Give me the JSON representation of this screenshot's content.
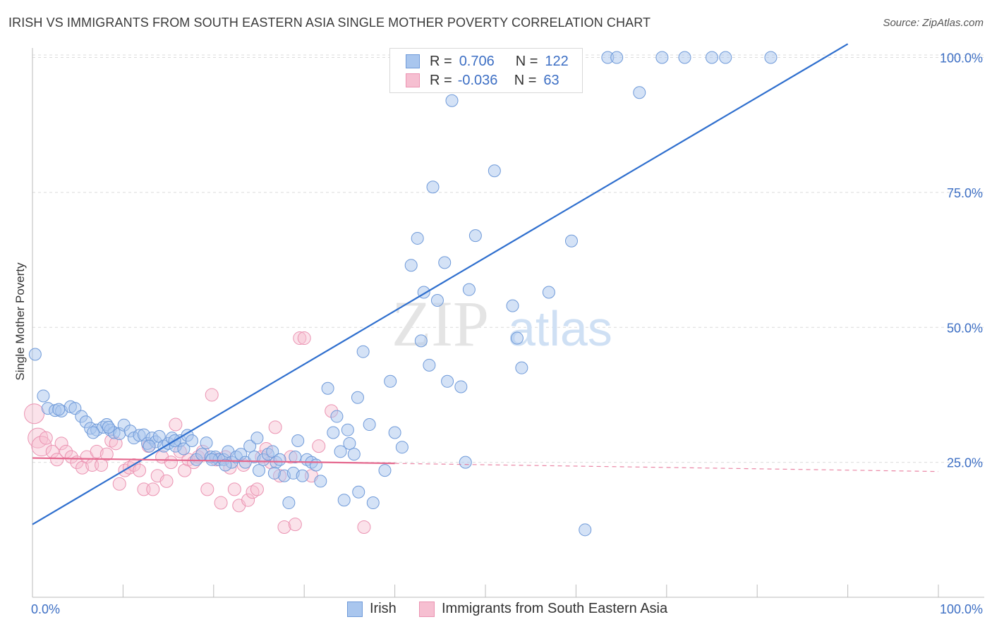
{
  "title": "IRISH VS IMMIGRANTS FROM SOUTH EASTERN ASIA SINGLE MOTHER POVERTY CORRELATION CHART",
  "source": "Source: ZipAtlas.com",
  "watermark": {
    "zip": "ZIP",
    "atlas": "atlas"
  },
  "legend": {
    "r_label": "R =",
    "n_label": "N =",
    "irish": {
      "r": "0.706",
      "n": "122"
    },
    "sea": {
      "r": "-0.036",
      "n": "63"
    }
  },
  "colors": {
    "irish_fill": "#a9c6ee",
    "irish_stroke": "#6f9ad9",
    "irish_line": "#2f6fce",
    "sea_fill": "#f6bfd1",
    "sea_stroke": "#eb93b2",
    "sea_line": "#e5698f",
    "tick_label": "#3d6fc4",
    "grid": "#dcdcdc"
  },
  "chart_data": {
    "type": "scatter",
    "title": "IRISH VS IMMIGRANTS FROM SOUTH EASTERN ASIA SINGLE MOTHER POVERTY CORRELATION CHART",
    "xlabel": "",
    "ylabel": "Single Mother Poverty",
    "xlim": [
      0,
      100
    ],
    "ylim": [
      0,
      105
    ],
    "x_tick_labels": [
      "0.0%",
      "100.0%"
    ],
    "y_ticks": [
      25,
      50,
      75,
      100
    ],
    "y_tick_labels": [
      "25.0%",
      "50.0%",
      "75.0%",
      "100.0%"
    ],
    "grid": "horizontal dashed",
    "legend_placement": "top-center and bottom",
    "series": [
      {
        "name": "Irish",
        "r": 0.706,
        "n": 122,
        "trend": {
          "x": [
            0,
            90
          ],
          "y": [
            13.5,
            102.5
          ]
        },
        "points": [
          [
            0.3,
            45.0
          ],
          [
            1.2,
            37.3
          ],
          [
            1.7,
            35.0
          ],
          [
            2.5,
            34.6
          ],
          [
            3.2,
            34.5
          ],
          [
            4.2,
            35.3
          ],
          [
            4.7,
            35.0
          ],
          [
            5.4,
            33.5
          ],
          [
            5.9,
            32.5
          ],
          [
            6.4,
            31.3
          ],
          [
            7.1,
            31.0
          ],
          [
            7.8,
            31.5
          ],
          [
            8.2,
            32.0
          ],
          [
            8.6,
            31.0
          ],
          [
            9.0,
            30.5
          ],
          [
            9.6,
            30.3
          ],
          [
            10.1,
            31.9
          ],
          [
            10.8,
            30.8
          ],
          [
            11.2,
            29.5
          ],
          [
            11.8,
            30.0
          ],
          [
            12.3,
            30.1
          ],
          [
            12.7,
            28.5
          ],
          [
            13.2,
            29.5
          ],
          [
            13.6,
            28.8
          ],
          [
            14.0,
            29.8
          ],
          [
            14.5,
            28.0
          ],
          [
            15.0,
            28.5
          ],
          [
            15.4,
            29.5
          ],
          [
            15.8,
            28.0
          ],
          [
            16.3,
            29.0
          ],
          [
            16.7,
            27.5
          ],
          [
            17.1,
            30.0
          ],
          [
            17.6,
            29.0
          ],
          [
            18.1,
            25.5
          ],
          [
            18.7,
            26.5
          ],
          [
            19.2,
            28.6
          ],
          [
            19.7,
            26.0
          ],
          [
            20.2,
            26.0
          ],
          [
            20.6,
            25.5
          ],
          [
            21.1,
            25.5
          ],
          [
            21.6,
            27.0
          ],
          [
            22.0,
            25.0
          ],
          [
            22.5,
            26.0
          ],
          [
            23.0,
            26.5
          ],
          [
            23.5,
            25.0
          ],
          [
            24.0,
            28.0
          ],
          [
            24.5,
            26.0
          ],
          [
            25.0,
            23.5
          ],
          [
            25.5,
            25.5
          ],
          [
            26.0,
            26.5
          ],
          [
            26.5,
            27.0
          ],
          [
            26.9,
            25.0
          ],
          [
            27.3,
            25.5
          ],
          [
            27.8,
            22.5
          ],
          [
            28.3,
            17.5
          ],
          [
            28.8,
            23.0
          ],
          [
            29.3,
            29.0
          ],
          [
            29.8,
            22.5
          ],
          [
            30.3,
            25.5
          ],
          [
            30.8,
            25.0
          ],
          [
            31.3,
            24.5
          ],
          [
            31.8,
            21.5
          ],
          [
            32.6,
            38.7
          ],
          [
            33.2,
            30.5
          ],
          [
            33.6,
            33.5
          ],
          [
            34.0,
            27.0
          ],
          [
            34.4,
            18.0
          ],
          [
            35.0,
            28.5
          ],
          [
            35.5,
            26.5
          ],
          [
            35.9,
            37.0
          ],
          [
            36.5,
            45.5
          ],
          [
            37.2,
            32.0
          ],
          [
            37.6,
            17.5
          ],
          [
            38.9,
            23.5
          ],
          [
            39.5,
            40.0
          ],
          [
            40.0,
            30.5
          ],
          [
            40.8,
            27.8
          ],
          [
            41.8,
            61.5
          ],
          [
            42.5,
            66.5
          ],
          [
            42.9,
            47.5
          ],
          [
            43.2,
            56.5
          ],
          [
            43.8,
            43.0
          ],
          [
            44.2,
            76.0
          ],
          [
            44.7,
            55.0
          ],
          [
            45.5,
            62.0
          ],
          [
            45.8,
            40.0
          ],
          [
            46.3,
            92.0
          ],
          [
            47.3,
            39.0
          ],
          [
            47.8,
            25.0
          ],
          [
            48.2,
            57.0
          ],
          [
            48.9,
            67.0
          ],
          [
            49.3,
            100.0
          ],
          [
            51.0,
            79.0
          ],
          [
            52.5,
            100.0
          ],
          [
            53.0,
            54.0
          ],
          [
            53.5,
            48.0
          ],
          [
            54.0,
            42.5
          ],
          [
            55.0,
            100.0
          ],
          [
            57.0,
            56.5
          ],
          [
            58.3,
            100.0
          ],
          [
            59.5,
            66.0
          ],
          [
            61.0,
            12.5
          ],
          [
            63.5,
            100.0
          ],
          [
            64.5,
            100.0
          ],
          [
            67.0,
            93.5
          ],
          [
            69.5,
            100.0
          ],
          [
            72.0,
            100.0
          ],
          [
            75.0,
            100.0
          ],
          [
            76.5,
            100.0
          ],
          [
            81.5,
            100.0
          ],
          [
            36.0,
            19.5
          ],
          [
            34.8,
            31.0
          ],
          [
            26.7,
            23.0
          ],
          [
            24.8,
            29.5
          ],
          [
            19.8,
            25.5
          ],
          [
            15.7,
            29.0
          ],
          [
            12.9,
            28.0
          ],
          [
            8.4,
            31.5
          ],
          [
            6.7,
            30.5
          ],
          [
            2.9,
            34.8
          ],
          [
            21.3,
            24.5
          ],
          [
            29.0,
            26.0
          ]
        ]
      },
      {
        "name": "Immigrants from South Eastern Asia",
        "r": -0.036,
        "n": 63,
        "trend": {
          "x": [
            0,
            40
          ],
          "y": [
            25.8,
            24.8
          ]
        },
        "points": [
          [
            0.2,
            34.0
          ],
          [
            0.6,
            29.5
          ],
          [
            1.0,
            28.0
          ],
          [
            1.5,
            29.5
          ],
          [
            2.2,
            27.0
          ],
          [
            2.7,
            25.5
          ],
          [
            3.2,
            28.5
          ],
          [
            3.7,
            27.0
          ],
          [
            4.3,
            26.0
          ],
          [
            4.9,
            25.0
          ],
          [
            5.5,
            24.0
          ],
          [
            6.0,
            26.0
          ],
          [
            6.6,
            24.5
          ],
          [
            7.1,
            27.0
          ],
          [
            7.6,
            24.5
          ],
          [
            8.2,
            26.5
          ],
          [
            8.7,
            29.0
          ],
          [
            9.2,
            28.5
          ],
          [
            9.6,
            21.0
          ],
          [
            10.2,
            23.5
          ],
          [
            10.7,
            24.0
          ],
          [
            11.2,
            24.5
          ],
          [
            11.8,
            23.5
          ],
          [
            12.3,
            20.0
          ],
          [
            12.8,
            28.0
          ],
          [
            13.3,
            20.0
          ],
          [
            13.8,
            22.5
          ],
          [
            14.3,
            26.0
          ],
          [
            14.8,
            21.5
          ],
          [
            15.3,
            25.0
          ],
          [
            15.8,
            32.0
          ],
          [
            16.3,
            27.0
          ],
          [
            16.8,
            23.5
          ],
          [
            17.2,
            25.5
          ],
          [
            17.8,
            25.0
          ],
          [
            18.3,
            26.0
          ],
          [
            18.8,
            27.0
          ],
          [
            19.3,
            20.0
          ],
          [
            19.8,
            37.5
          ],
          [
            20.3,
            25.5
          ],
          [
            20.8,
            17.5
          ],
          [
            21.3,
            26.0
          ],
          [
            21.8,
            24.0
          ],
          [
            22.3,
            20.0
          ],
          [
            22.8,
            17.0
          ],
          [
            23.3,
            24.5
          ],
          [
            23.8,
            18.0
          ],
          [
            24.3,
            19.5
          ],
          [
            24.8,
            20.0
          ],
          [
            25.3,
            26.0
          ],
          [
            25.8,
            27.5
          ],
          [
            26.3,
            25.0
          ],
          [
            26.8,
            31.5
          ],
          [
            27.3,
            22.5
          ],
          [
            27.8,
            13.0
          ],
          [
            28.5,
            26.0
          ],
          [
            29.0,
            13.5
          ],
          [
            29.5,
            48.0
          ],
          [
            30.0,
            48.0
          ],
          [
            30.8,
            22.5
          ],
          [
            31.6,
            28.0
          ],
          [
            33.0,
            34.5
          ],
          [
            36.6,
            13.0
          ]
        ]
      }
    ]
  }
}
